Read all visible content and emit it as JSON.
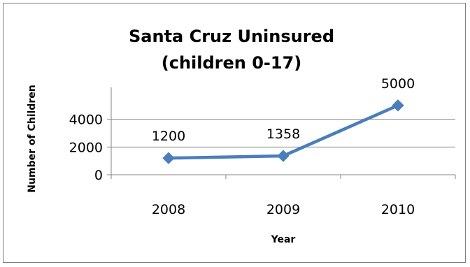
{
  "chart_data": {
    "type": "line",
    "title_lines": [
      "Santa Cruz Uninsured",
      "(children 0-17)"
    ],
    "xlabel": "Year",
    "ylabel": "Number of Children",
    "categories": [
      "2008",
      "2009",
      "2010"
    ],
    "series": [
      {
        "values": [
          1200,
          1358,
          5000
        ],
        "color": "#4a7ebb"
      }
    ],
    "data_labels": [
      "1200",
      "1358",
      "5000"
    ],
    "y_ticks": [
      0,
      2000,
      4000
    ],
    "ylim": [
      0,
      6000
    ],
    "grid": true,
    "legend": "none",
    "marker": "diamond"
  }
}
